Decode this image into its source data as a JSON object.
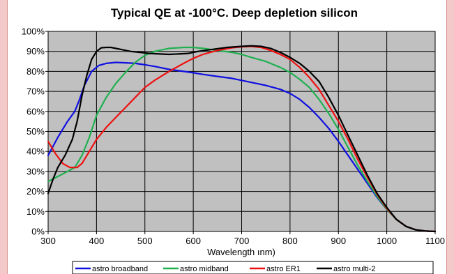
{
  "chart_data": {
    "type": "line",
    "title": "Typical QE at -100°C. Deep depletion silicon",
    "xlabel": "Wavelength ınm)",
    "ylabel": "",
    "xlim": [
      300,
      1100
    ],
    "ylim": [
      0,
      100
    ],
    "x_ticks": [
      "300",
      "400",
      "500",
      "600",
      "700",
      "800",
      "900",
      "1000",
      "1100"
    ],
    "y_ticks": [
      "0%",
      "10%",
      "20%",
      "30%",
      "40%",
      "50%",
      "60%",
      "70%",
      "80%",
      "90%",
      "100%"
    ],
    "grid": true,
    "legend_position": "bottom",
    "plot_background": "#c0c0c0",
    "series": [
      {
        "name": "astro broadband",
        "color": "#1010e0",
        "points": [
          [
            300,
            38
          ],
          [
            320,
            47
          ],
          [
            340,
            55
          ],
          [
            355,
            60
          ],
          [
            365,
            66
          ],
          [
            375,
            73
          ],
          [
            390,
            80
          ],
          [
            405,
            83
          ],
          [
            420,
            84
          ],
          [
            440,
            84.5
          ],
          [
            460,
            84.3
          ],
          [
            480,
            84
          ],
          [
            500,
            83.3
          ],
          [
            520,
            82.5
          ],
          [
            550,
            81
          ],
          [
            580,
            80
          ],
          [
            600,
            79.3
          ],
          [
            620,
            78.5
          ],
          [
            650,
            77.5
          ],
          [
            680,
            76.5
          ],
          [
            700,
            75.5
          ],
          [
            720,
            74.5
          ],
          [
            750,
            73
          ],
          [
            780,
            71
          ],
          [
            800,
            69
          ],
          [
            820,
            66
          ],
          [
            840,
            62
          ],
          [
            860,
            57
          ],
          [
            880,
            51.5
          ],
          [
            900,
            45
          ],
          [
            920,
            38
          ],
          [
            940,
            31
          ],
          [
            960,
            24
          ],
          [
            980,
            17
          ],
          [
            1000,
            11
          ],
          [
            1020,
            6
          ],
          [
            1040,
            2.5
          ],
          [
            1060,
            0.8
          ],
          [
            1080,
            0.2
          ],
          [
            1100,
            0
          ]
        ]
      },
      {
        "name": "astro midband",
        "color": "#20b050",
        "points": [
          [
            300,
            25
          ],
          [
            320,
            27.5
          ],
          [
            340,
            30
          ],
          [
            355,
            32
          ],
          [
            370,
            38
          ],
          [
            385,
            47
          ],
          [
            400,
            58
          ],
          [
            420,
            67
          ],
          [
            440,
            74
          ],
          [
            460,
            79.5
          ],
          [
            480,
            84.5
          ],
          [
            500,
            88
          ],
          [
            520,
            90
          ],
          [
            550,
            91.5
          ],
          [
            580,
            92
          ],
          [
            600,
            92
          ],
          [
            620,
            91.5
          ],
          [
            650,
            90.5
          ],
          [
            680,
            89.5
          ],
          [
            700,
            88.5
          ],
          [
            720,
            87
          ],
          [
            750,
            85
          ],
          [
            780,
            82
          ],
          [
            800,
            79.5
          ],
          [
            820,
            76
          ],
          [
            840,
            72
          ],
          [
            860,
            66
          ],
          [
            880,
            59
          ],
          [
            900,
            51
          ],
          [
            920,
            42
          ],
          [
            940,
            33
          ],
          [
            960,
            25
          ],
          [
            980,
            17.5
          ],
          [
            1000,
            11
          ],
          [
            1020,
            6
          ],
          [
            1040,
            2.5
          ],
          [
            1060,
            0.8
          ],
          [
            1080,
            0.2
          ],
          [
            1100,
            0
          ]
        ]
      },
      {
        "name": "astro ER1",
        "color": "#ee1010",
        "points": [
          [
            300,
            45
          ],
          [
            315,
            39
          ],
          [
            330,
            34
          ],
          [
            345,
            32
          ],
          [
            360,
            32
          ],
          [
            370,
            34
          ],
          [
            385,
            40
          ],
          [
            400,
            46
          ],
          [
            420,
            52
          ],
          [
            440,
            57
          ],
          [
            460,
            62
          ],
          [
            480,
            67
          ],
          [
            500,
            72
          ],
          [
            520,
            75.5
          ],
          [
            550,
            80
          ],
          [
            580,
            84
          ],
          [
            600,
            86.5
          ],
          [
            620,
            88.5
          ],
          [
            650,
            90.5
          ],
          [
            680,
            91.8
          ],
          [
            700,
            92.3
          ],
          [
            720,
            92.5
          ],
          [
            740,
            92
          ],
          [
            760,
            90.5
          ],
          [
            780,
            88.5
          ],
          [
            800,
            86
          ],
          [
            820,
            82
          ],
          [
            840,
            77
          ],
          [
            860,
            71
          ],
          [
            880,
            63
          ],
          [
            900,
            55
          ],
          [
            920,
            46
          ],
          [
            940,
            36
          ],
          [
            960,
            27
          ],
          [
            980,
            18.5
          ],
          [
            1000,
            11.5
          ],
          [
            1020,
            6
          ],
          [
            1040,
            2.5
          ],
          [
            1060,
            0.8
          ],
          [
            1080,
            0.2
          ],
          [
            1100,
            0
          ]
        ]
      },
      {
        "name": "astro multi-2",
        "color": "#000000",
        "points": [
          [
            300,
            19
          ],
          [
            310,
            26
          ],
          [
            320,
            32
          ],
          [
            335,
            38
          ],
          [
            350,
            46
          ],
          [
            360,
            55
          ],
          [
            370,
            68
          ],
          [
            380,
            78
          ],
          [
            390,
            86
          ],
          [
            400,
            90
          ],
          [
            410,
            91.8
          ],
          [
            420,
            92
          ],
          [
            430,
            92
          ],
          [
            450,
            91
          ],
          [
            470,
            90
          ],
          [
            490,
            89.5
          ],
          [
            510,
            89
          ],
          [
            530,
            88.7
          ],
          [
            550,
            88.5
          ],
          [
            570,
            88.7
          ],
          [
            590,
            89
          ],
          [
            610,
            90
          ],
          [
            640,
            91
          ],
          [
            670,
            92
          ],
          [
            700,
            92.5
          ],
          [
            720,
            92.8
          ],
          [
            740,
            92.5
          ],
          [
            760,
            91.5
          ],
          [
            780,
            89.5
          ],
          [
            800,
            87
          ],
          [
            820,
            84
          ],
          [
            840,
            80
          ],
          [
            860,
            75
          ],
          [
            880,
            67
          ],
          [
            900,
            58
          ],
          [
            920,
            48
          ],
          [
            940,
            38
          ],
          [
            960,
            28
          ],
          [
            980,
            19
          ],
          [
            1000,
            12
          ],
          [
            1020,
            6
          ],
          [
            1040,
            2.5
          ],
          [
            1060,
            0.8
          ],
          [
            1080,
            0.2
          ],
          [
            1100,
            0
          ]
        ]
      }
    ]
  }
}
